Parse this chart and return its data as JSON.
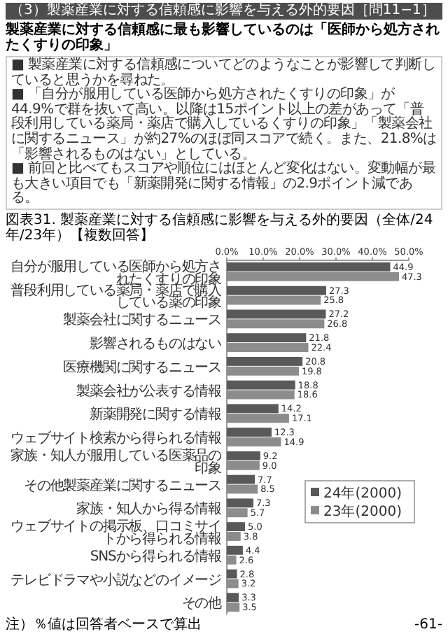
{
  "chart_data": {
    "type": "bar",
    "orientation": "horizontal",
    "title": "図表31. 製薬産業に対する信頼感に影響を与える外的要因（全体/24年/23年）【複数回答】",
    "categories": [
      "自分が服用している医師から処方されたくすりの印象",
      "普段利用している薬局・薬店で購入している薬の印象",
      "製薬会社に関するニュース",
      "影響されるものはない",
      "医療機関に関するニュース",
      "製薬会社が公表する情報",
      "新薬開発に関する情報",
      "ウェブサイト検索から得られる情報",
      "家族・知人が服用している医薬品の印象",
      "その他製薬産業に関するニュース",
      "家族・知人から得る情報",
      "ウェブサイトの掲示板、口コミサイトから得られる情報",
      "SNSから得られる情報",
      "テレビドラマや小説などのイメージ",
      "その他"
    ],
    "series": [
      {
        "name": "24年(2000)",
        "color": "#595959",
        "values": [
          44.9,
          27.3,
          27.2,
          21.8,
          20.8,
          18.8,
          14.2,
          12.3,
          9.2,
          7.7,
          7.3,
          5.0,
          4.4,
          2.8,
          3.3
        ],
        "value_labels": [
          "44.9",
          "27.3",
          "27.2",
          "21.8",
          "20.8",
          "18.8",
          "14.2",
          "12.3",
          "9.2",
          "7.7",
          "7.3",
          "5.0",
          "4.4",
          "2.8",
          "3.3"
        ]
      },
      {
        "name": "23年(2000)",
        "color": "#8c8c8c",
        "values": [
          47.3,
          25.8,
          26.8,
          22.4,
          19.8,
          18.6,
          17.1,
          14.9,
          9.0,
          8.5,
          5.7,
          3.8,
          2.6,
          3.2,
          3.5
        ],
        "value_labels": [
          "47.3",
          "25.8",
          "26.8",
          "22.4",
          "19.8",
          "18.6",
          "17.1",
          "14.9",
          "9.0",
          "8.5",
          "5.7",
          "3.8",
          "2.6",
          "3.2",
          "3.5"
        ]
      }
    ],
    "xlim": [
      0,
      50
    ],
    "xticks": [
      {
        "value": 0,
        "label": "0.0%"
      },
      {
        "value": 10,
        "label": "10.0%"
      },
      {
        "value": 20,
        "label": "20.0%"
      },
      {
        "value": 30,
        "label": "30.0%"
      },
      {
        "value": 40,
        "label": "40.0%"
      },
      {
        "value": 50,
        "label": "50.0%"
      }
    ],
    "legend": "right",
    "annotations": [
      "（3）製薬産業に対する信頼感に影響を与える外的要因［問11−1］",
      "製薬産業に対する信頼感に最も影響しているのは「医師から処方されたくすりの印象」",
      "■ 製薬産業に対する信頼感についてどのようなことが影響して判断していると思うかを尋ねた。",
      "■ 「自分が服用している医師から処方されたくすりの印象」が44.9%で群を抜いて高い。以降は15ポイント以上の差があって「普段利用している薬局・薬店で購入しているくすりの印象」「製薬会社に関するニュース」が約27%のほぼ同スコアで続く。また、21.8%は「影響されるものはない」としている。",
      "■ 前回と比べてもスコアや順位にはほとんど変化はない。変動幅が最も大きい項目でも「新薬開発に関する情報」の2.9ポイント減である。",
      "注）％値は回答者ベースで算出",
      "-61-"
    ]
  }
}
